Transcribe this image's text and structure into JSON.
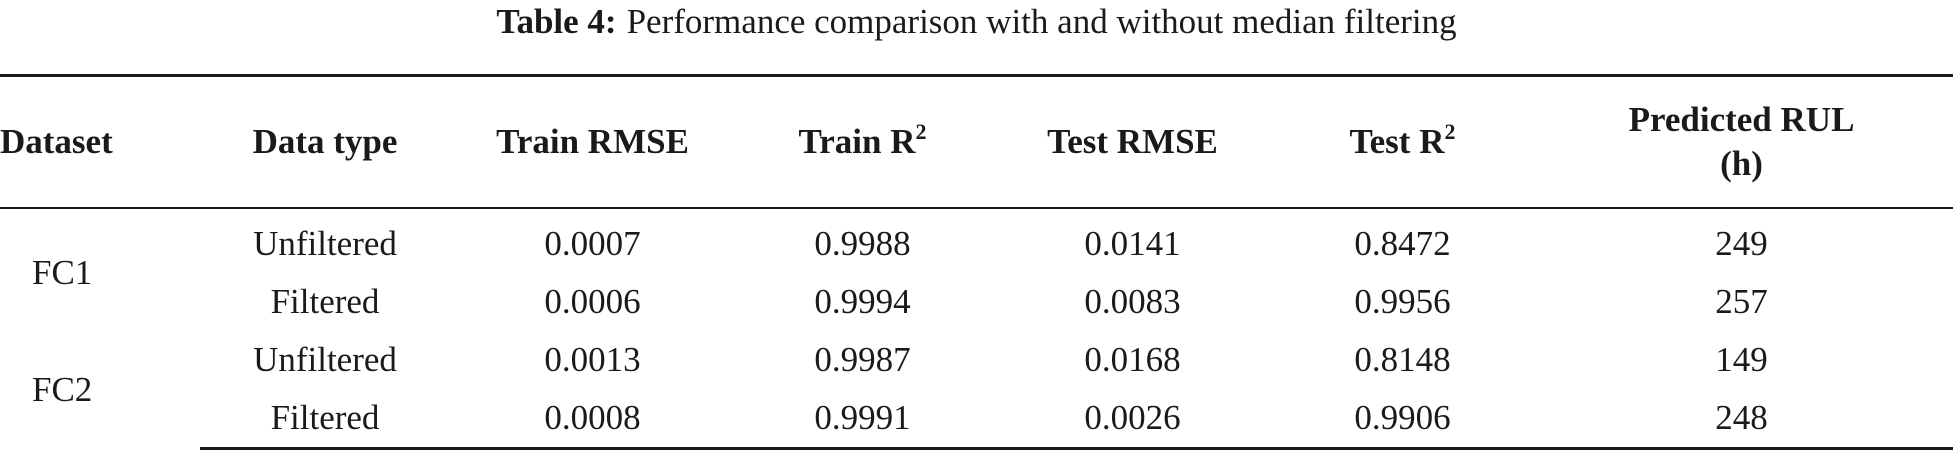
{
  "caption": {
    "label": "Table 4:",
    "text": "Performance comparison with and without median filtering"
  },
  "table": {
    "headers": {
      "dataset": "Dataset",
      "data_type": "Data type",
      "train_rmse": "Train RMSE",
      "train_r2_base": "Train R",
      "train_r2_sup": "2",
      "test_rmse": "Test RMSE",
      "test_r2_base": "Test R",
      "test_r2_sup": "2",
      "predicted_rul_line1": "Predicted RUL",
      "predicted_rul_line2": "(h)"
    },
    "groups": [
      {
        "dataset": "FC1",
        "rows": [
          {
            "data_type": "Unfiltered",
            "train_rmse": "0.0007",
            "train_r2": "0.9988",
            "test_rmse": "0.0141",
            "test_r2": "0.8472",
            "rul": "249"
          },
          {
            "data_type": "Filtered",
            "train_rmse": "0.0006",
            "train_r2": "0.9994",
            "test_rmse": "0.0083",
            "test_r2": "0.9956",
            "rul": "257"
          }
        ]
      },
      {
        "dataset": "FC2",
        "rows": [
          {
            "data_type": "Unfiltered",
            "train_rmse": "0.0013",
            "train_r2": "0.9987",
            "test_rmse": "0.0168",
            "test_r2": "0.8148",
            "rul": "149"
          },
          {
            "data_type": "Filtered",
            "train_rmse": "0.0008",
            "train_r2": "0.9991",
            "test_rmse": "0.0026",
            "test_r2": "0.9906",
            "rul": "248"
          }
        ]
      }
    ]
  }
}
